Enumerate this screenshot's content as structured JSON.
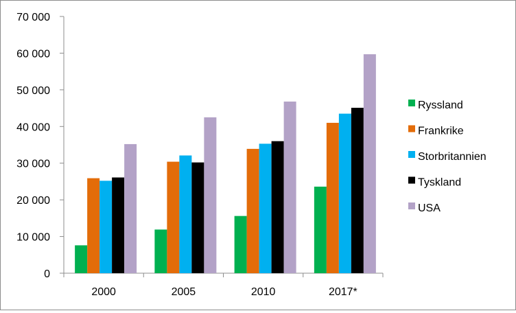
{
  "chart_data": {
    "type": "bar",
    "categories": [
      "2000",
      "2005",
      "2010",
      "2017*"
    ],
    "series": [
      {
        "name": "Ryssland",
        "color": "#00b050",
        "values": [
          7600,
          11900,
          15600,
          23600
        ]
      },
      {
        "name": "Frankrike",
        "color": "#e36c09",
        "values": [
          25900,
          30400,
          33900,
          41000
        ]
      },
      {
        "name": "Storbritannien",
        "color": "#00b0f0",
        "values": [
          25200,
          32100,
          35300,
          43500
        ]
      },
      {
        "name": "Tyskland",
        "color": "#000000",
        "values": [
          26100,
          30200,
          36000,
          45100
        ]
      },
      {
        "name": "USA",
        "color": "#b3a2c7",
        "values": [
          35200,
          42500,
          46800,
          59700
        ]
      }
    ],
    "yticks": [
      "0",
      "10 000",
      "20 000",
      "30 000",
      "40 000",
      "50 000",
      "60 000",
      "70 000"
    ],
    "ylim": [
      0,
      70000
    ],
    "ytick_step": 10000,
    "grid": false,
    "legend": "right",
    "title": "",
    "xlabel": "",
    "ylabel": ""
  }
}
